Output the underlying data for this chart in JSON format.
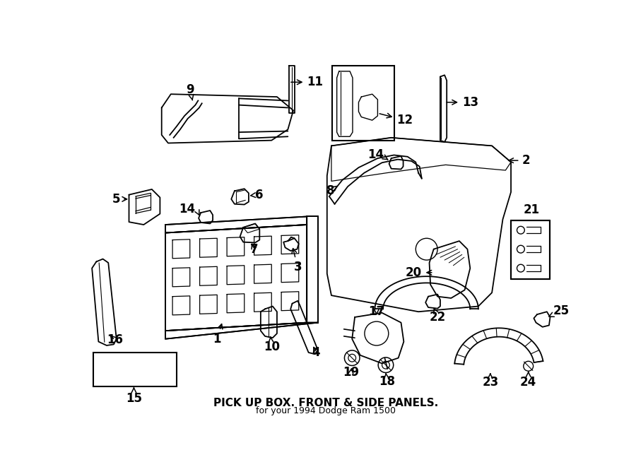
{
  "title": "PICK UP BOX. FRONT & SIDE PANELS.",
  "subtitle": "for your 1994 Dodge Ram 1500",
  "bg_color": "#ffffff",
  "line_color": "#000000",
  "lw": 1.3,
  "label_fontsize": 12
}
